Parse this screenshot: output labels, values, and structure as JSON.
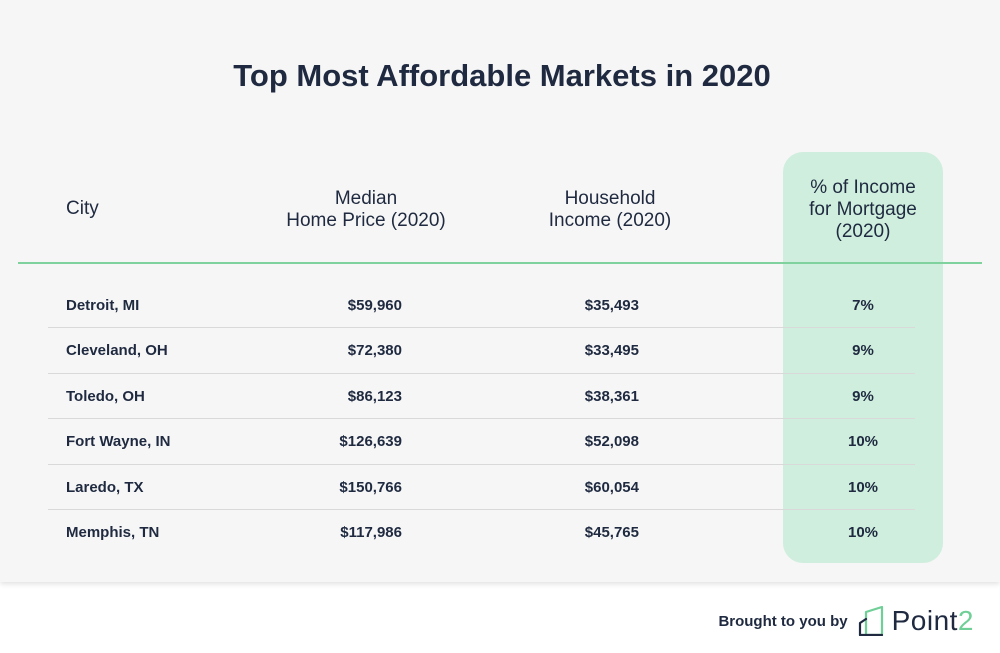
{
  "title": "Top Most Affordable Markets in 2020",
  "headers": {
    "city": "City",
    "price_line1": "Median",
    "price_line2": "Home Price (2020)",
    "income_line1": "Household",
    "income_line2": "Income (2020)",
    "mortgage_line1": "% of Income",
    "mortgage_line2": "for Mortgage",
    "mortgage_line3": "(2020)"
  },
  "colors": {
    "accent": "#7fd19d",
    "highlight": "#cfeedd",
    "text": "#1f2a40",
    "background": "#f6f6f6"
  },
  "chart_data": {
    "type": "table",
    "title": "Top Most Affordable Markets in 2020",
    "columns": [
      "City",
      "Median Home Price (2020)",
      "Household Income (2020)",
      "% of Income for Mortgage (2020)"
    ],
    "rows": [
      {
        "city": "Detroit, MI",
        "price": "$59,960",
        "income": "$35,493",
        "pct": "7%"
      },
      {
        "city": "Cleveland, OH",
        "price": "$72,380",
        "income": "$33,495",
        "pct": "9%"
      },
      {
        "city": "Toledo, OH",
        "price": "$86,123",
        "income": "$38,361",
        "pct": "9%"
      },
      {
        "city": "Fort Wayne, IN",
        "price": "$126,639",
        "income": "$52,098",
        "pct": "10%"
      },
      {
        "city": "Laredo, TX",
        "price": "$150,766",
        "income": "$60,054",
        "pct": "10%"
      },
      {
        "city": "Memphis, TN",
        "price": "$117,986",
        "income": "$45,765",
        "pct": "10%"
      }
    ]
  },
  "footer": {
    "brought_by": "Brought to you by",
    "logo_name": "Point",
    "logo_suffix": "2",
    "logo_icon": "house-outline-icon"
  }
}
